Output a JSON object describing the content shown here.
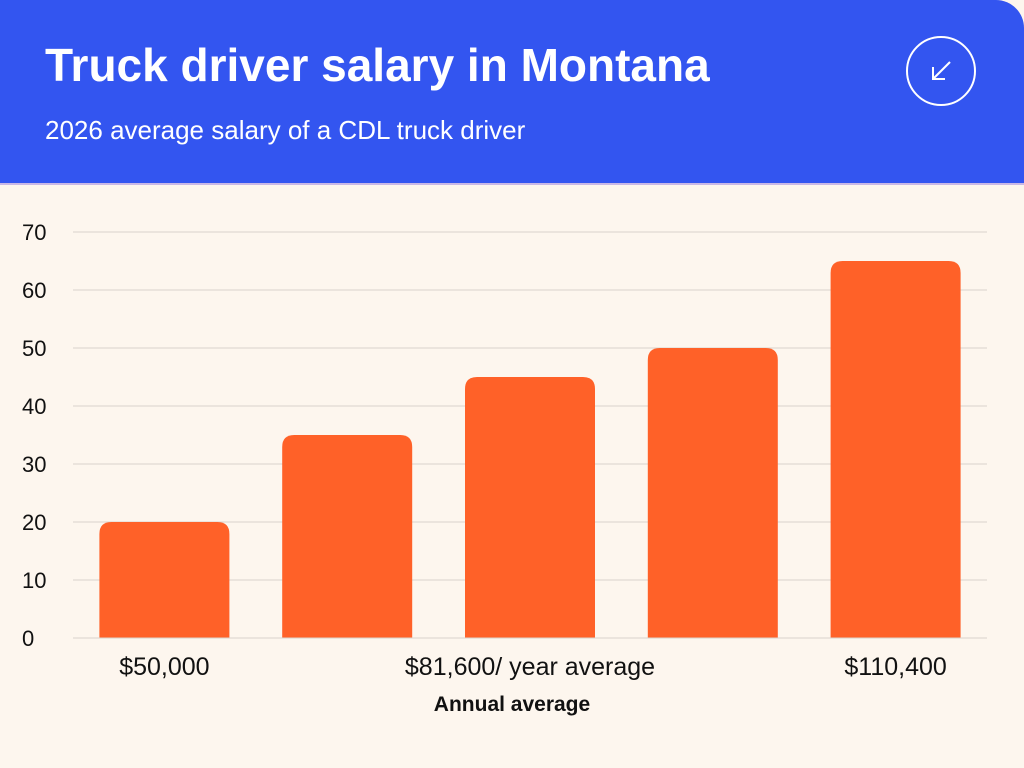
{
  "header": {
    "title": "Truck driver salary in Montana",
    "subtitle": "2026 average salary of a CDL truck driver",
    "icon": "arrow-down-left-icon"
  },
  "colors": {
    "header_bg": "#3355f0",
    "page_bg": "#fdf6ee",
    "bar": "#ff6128",
    "grid": "#d9d2cc",
    "text": "#111111"
  },
  "chart_data": {
    "type": "bar",
    "values": [
      20,
      35,
      45,
      50,
      65
    ],
    "x_tick_labels": [
      "$50,000",
      "$81,600/ year average",
      "$110,400"
    ],
    "x_tick_positions": [
      0,
      2,
      4
    ],
    "xlabel": "Annual average",
    "ylabel": "",
    "ylim": [
      0,
      70
    ],
    "yticks": [
      0,
      10,
      20,
      30,
      40,
      50,
      60,
      70
    ],
    "grid": true,
    "legend": "none"
  }
}
